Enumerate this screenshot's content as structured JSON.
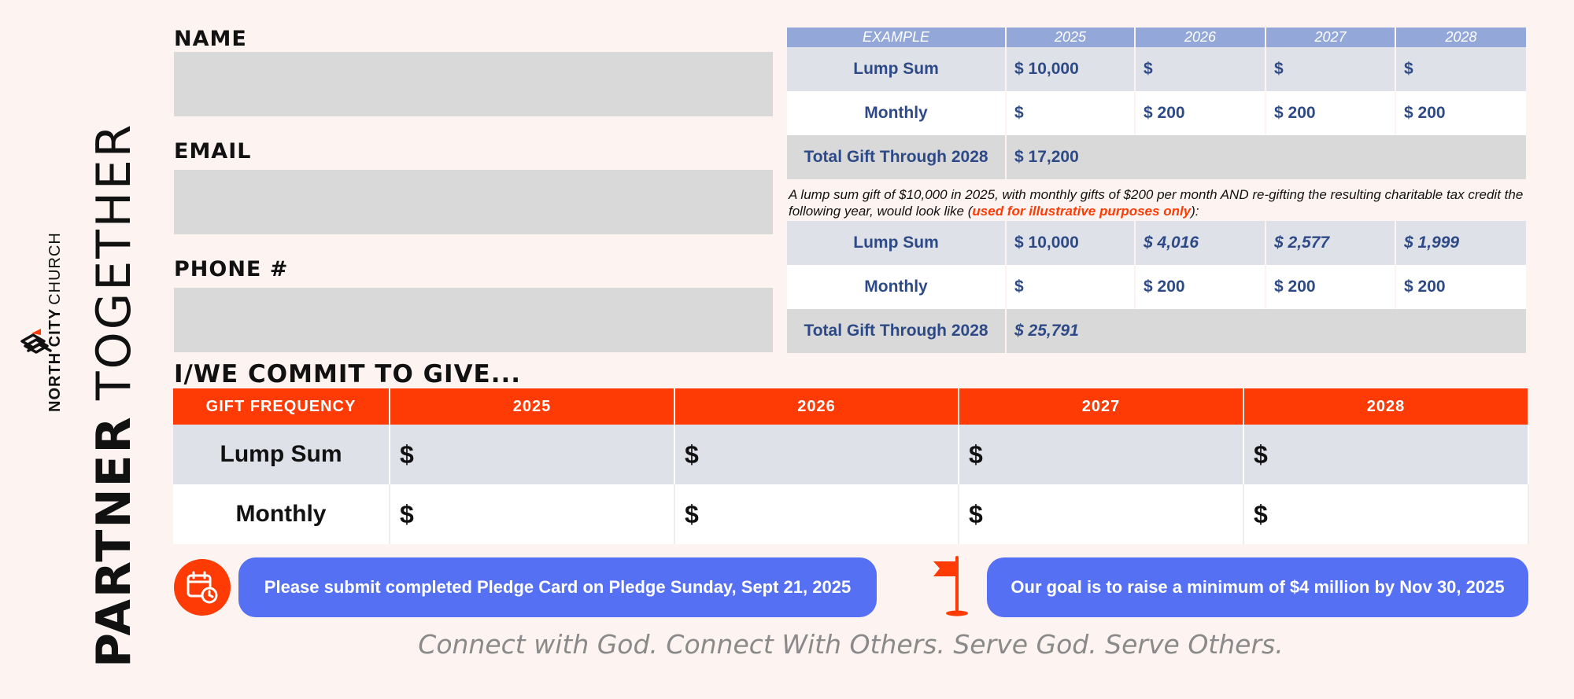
{
  "brand": {
    "title_bold": "PARTNER",
    "title_light": "TOGETHER",
    "org_bold": "NORTH CITY",
    "org_light": "CHURCH",
    "logo_icon": "north-city-logo-icon"
  },
  "form": {
    "name_label": "NAME",
    "email_label": "EMAIL",
    "phone_label": "PHONE #",
    "name_value": "",
    "email_value": "",
    "phone_value": ""
  },
  "example": {
    "header": [
      "EXAMPLE",
      "2025",
      "2026",
      "2027",
      "2028"
    ],
    "table1": {
      "lump_label": "Lump Sum",
      "lump": [
        "$ 10,000",
        "$",
        "$",
        "$"
      ],
      "monthly_label": "Monthly",
      "monthly": [
        "$",
        "$ 200",
        "$ 200",
        "$ 200"
      ],
      "total_label": "Total Gift Through 2028",
      "total": "$ 17,200"
    },
    "note_pre": "A lump sum gift of $10,000 in 2025, with monthly gifts of $200 per month AND re-gifting the resulting charitable tax credit the following year, would look like (",
    "note_highlight": "used for illustrative purposes only",
    "note_post": "):",
    "table2": {
      "lump_label": "Lump Sum",
      "lump": [
        "$ 10,000",
        "$ 4,016",
        "$ 2,577",
        "$ 1,999"
      ],
      "monthly_label": "Monthly",
      "monthly": [
        "$",
        "$ 200",
        "$ 200",
        "$ 200"
      ],
      "total_label": "Total Gift Through 2028",
      "total": "$ 25,791"
    }
  },
  "commit": {
    "heading": "I/WE COMMIT TO GIVE...",
    "columns": [
      "GIFT FREQUENCY",
      "2025",
      "2026",
      "2027",
      "2028"
    ],
    "rows": [
      {
        "label": "Lump Sum",
        "cells": [
          "$",
          "$",
          "$",
          "$"
        ]
      },
      {
        "label": "Monthly",
        "cells": [
          "$",
          "$",
          "$",
          "$"
        ]
      }
    ]
  },
  "footer": {
    "submit_text": "Please submit completed Pledge Card on Pledge Sunday, Sept 21, 2025",
    "goal_text": "Our goal is to raise a minimum of $4 million by Nov 30, 2025",
    "calendar_icon": "calendar-clock-icon",
    "flag_icon": "flag-icon",
    "tagline": "Connect with God. Connect With Others. Serve God. Serve Others."
  },
  "colors": {
    "accent_orange": "#ff3b05",
    "accent_blue": "#5570f2",
    "table_header_blue": "#93a8d8",
    "text_navy": "#2e4a86",
    "background": "#fdf3f0"
  }
}
